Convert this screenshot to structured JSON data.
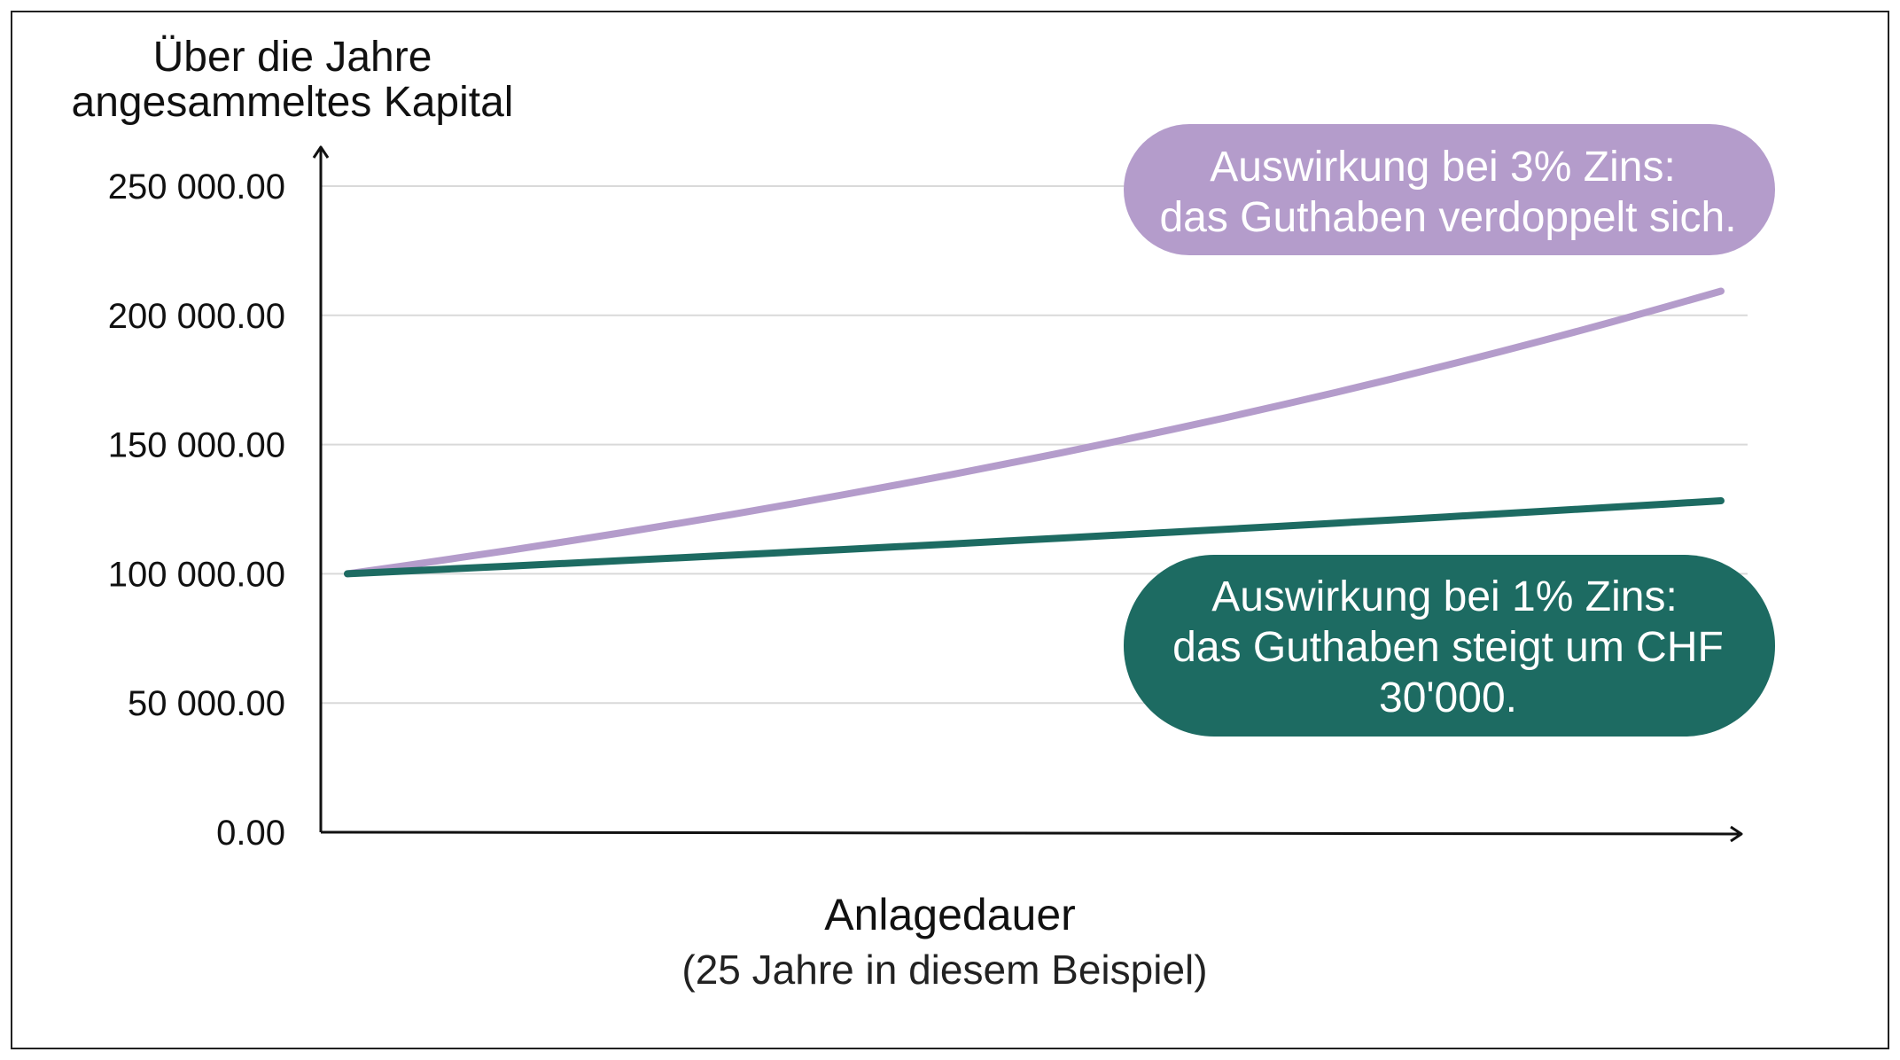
{
  "chart_data": {
    "type": "line",
    "ylabel_lines": [
      "Über die Jahre",
      "angesammeltes Kapital"
    ],
    "xlabel": "Anlagedauer",
    "xlabel_sub": "(25 Jahre in diesem Beispiel)",
    "yticks": [
      {
        "value": 0,
        "label": "0.00"
      },
      {
        "value": 50000,
        "label": "50 000.00"
      },
      {
        "value": 100000,
        "label": "100 000.00"
      },
      {
        "value": 150000,
        "label": "150 000.00"
      },
      {
        "value": 200000,
        "label": "200 000.00"
      },
      {
        "value": 250000,
        "label": "250 000.00"
      }
    ],
    "ylim": [
      0,
      250000
    ],
    "xlim": [
      0,
      25
    ],
    "grid": true,
    "series": [
      {
        "key": "rate3",
        "color": "#b49ccb",
        "x": [
          0,
          1,
          2,
          3,
          4,
          5,
          6,
          7,
          8,
          9,
          10,
          11,
          12,
          13,
          14,
          15,
          16,
          17,
          18,
          19,
          20,
          21,
          22,
          23,
          24,
          25
        ],
        "values": [
          100000,
          103000,
          106090,
          109273,
          112551,
          115927,
          119405,
          122987,
          126677,
          130477,
          134392,
          138423,
          142576,
          146853,
          151259,
          155797,
          160471,
          165285,
          170243,
          175351,
          180611,
          186029,
          191610,
          197359,
          203279,
          209378
        ]
      },
      {
        "key": "rate1",
        "color": "#1d6b62",
        "x": [
          0,
          1,
          2,
          3,
          4,
          5,
          6,
          7,
          8,
          9,
          10,
          11,
          12,
          13,
          14,
          15,
          16,
          17,
          18,
          19,
          20,
          21,
          22,
          23,
          24,
          25
        ],
        "values": [
          100000,
          101000,
          102010,
          103030,
          104060,
          105101,
          106152,
          107214,
          108286,
          109369,
          110462,
          111567,
          112683,
          113809,
          114947,
          116097,
          117258,
          118430,
          119615,
          120811,
          122019,
          123239,
          124472,
          125716,
          126973,
          128243
        ]
      }
    ],
    "annotations": [
      {
        "key": "rate3",
        "color": "#b49ccb",
        "title": "Auswirkung bei 3% Zins:",
        "lines": [
          "das Guthaben verdoppelt sich."
        ]
      },
      {
        "key": "rate1",
        "color": "#1d6b62",
        "title": "Auswirkung bei 1% Zins:",
        "lines": [
          "das Guthaben steigt um CHF",
          "30'000."
        ]
      }
    ]
  }
}
